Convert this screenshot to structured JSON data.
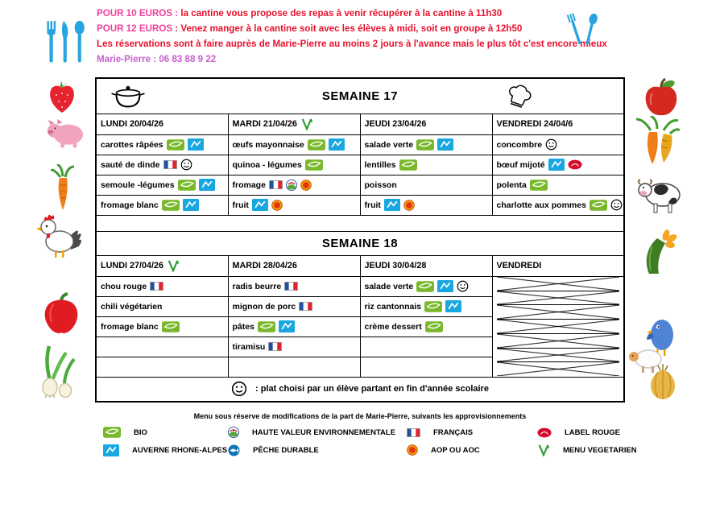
{
  "colors": {
    "pink": "#f0409b",
    "red": "#e8112d",
    "magenta": "#c75fce",
    "bio_green": "#78b82a",
    "ara_blue": "#1aa7e0",
    "label_rouge_red": "#d50a2c",
    "aop_orange": "#f2a007",
    "veg_green": "#2f9e2f",
    "cutlery_blue": "#28a4de"
  },
  "header": {
    "lines": [
      {
        "label": "POUR 10 EUROS : ",
        "text": " la cantine vous propose des repas à venir récupérer à la cantine à 11h30",
        "label_color": "#f0409b",
        "text_color": "#e8112d"
      },
      {
        "label": "POUR 12 EUROS ",
        "text": ": Venez manger à la cantine soit avec les élèves à midi, soit en groupe à 12h50",
        "label_color": "#f0409b",
        "text_color": "#e8112d"
      },
      {
        "label": "",
        "text": "Les réservations sont à faire auprès de Marie-Pierre au moins 2 jours à l'avance mais le plus tôt c'est encore mieux",
        "label_color": "#e8112d",
        "text_color": "#e8112d"
      },
      {
        "label": "",
        "text": "Marie-Pierre  : 06 83 88 9 22",
        "label_color": "#c75fce",
        "text_color": "#c75fce"
      }
    ]
  },
  "weeks": [
    {
      "title": "SEMAINE 17",
      "title_left_icon": "pot",
      "title_right_icon": "chefhat",
      "days": [
        "LUNDI 20/04/26",
        "MARDI 21/04/26",
        "JEUDI 23/04/26",
        "VENDREDI 24/04/6"
      ],
      "day_icons": [
        null,
        "veg",
        null,
        null
      ],
      "rows": [
        [
          {
            "text": "carottes râpées",
            "icons": [
              "bio",
              "ara"
            ]
          },
          {
            "text": "œufs mayonnaise",
            "icons": [
              "bio",
              "ara"
            ]
          },
          {
            "text": "salade verte",
            "icons": [
              "bio",
              "ara"
            ]
          },
          {
            "text": "concombre",
            "icons": [
              "smiley"
            ]
          }
        ],
        [
          {
            "text": "sauté de dinde",
            "icons": [
              "flag",
              "smiley"
            ]
          },
          {
            "text": "quinoa - légumes",
            "icons": [
              "bio"
            ]
          },
          {
            "text": "lentilles",
            "icons": [
              "bio"
            ]
          },
          {
            "text": "bœuf mijoté",
            "icons": [
              "ara",
              "labelrouge"
            ]
          }
        ],
        [
          {
            "text": "semoule -légumes",
            "icons": [
              "bio",
              "ara"
            ]
          },
          {
            "text": "fromage",
            "icons": [
              "flag",
              "hve",
              "aop"
            ]
          },
          {
            "text": "poisson",
            "icons": []
          },
          {
            "text": "polenta",
            "icons": [
              "bio"
            ]
          }
        ],
        [
          {
            "text": "fromage blanc",
            "icons": [
              "bio",
              "ara"
            ]
          },
          {
            "text": "fruit",
            "icons": [
              "ara",
              "aop"
            ]
          },
          {
            "text": "fruit",
            "icons": [
              "ara",
              "aop"
            ]
          },
          {
            "text": "charlotte aux pommes",
            "icons": [
              "bio",
              "smiley"
            ]
          }
        ]
      ]
    },
    {
      "title": "SEMAINE 18",
      "days": [
        "LUNDI 27/04/26",
        "MARDI 28/04/26",
        "JEUDI 30/04/28",
        "VENDREDI"
      ],
      "day_icons": [
        "veg",
        null,
        null,
        null
      ],
      "rows": [
        [
          {
            "text": "chou rouge",
            "icons": [
              "flag"
            ]
          },
          {
            "text": "radis beurre",
            "icons": [
              "flag"
            ]
          },
          {
            "text": "salade verte",
            "icons": [
              "bio",
              "ara",
              "smiley"
            ]
          },
          {
            "crossed": true
          }
        ],
        [
          {
            "text": "chili végétarien",
            "icons": []
          },
          {
            "text": "mignon de porc",
            "icons": [
              "flag"
            ]
          },
          {
            "text": "riz cantonnais",
            "icons": [
              "bio",
              "ara"
            ]
          },
          {
            "crossed": true
          }
        ],
        [
          {
            "text": "fromage blanc",
            "icons": [
              "bio"
            ]
          },
          {
            "text": "pâtes",
            "icons": [
              "bio",
              "ara"
            ]
          },
          {
            "text": "crème dessert",
            "icons": [
              "bio"
            ]
          },
          {
            "crossed": true
          }
        ],
        [
          {
            "text": "",
            "icons": []
          },
          {
            "text": "tiramisu",
            "icons": [
              "flag"
            ]
          },
          {
            "text": "",
            "icons": []
          },
          {
            "crossed": true
          }
        ]
      ],
      "footer": {
        "icon": "smiley",
        "text": ": plat choisi par un élève partant en fin d'année scolaire"
      }
    }
  ],
  "note": "Menu sous réserve de modifications de la part de Marie-Pierre, suivants les approvisionnements",
  "legend": {
    "rows": [
      [
        {
          "icon": "bio",
          "label": "BIO"
        },
        {
          "icon": "hve",
          "label": "HAUTE VALEUR ENVIRONNEMENTALE"
        },
        {
          "icon": "flag",
          "label": "FRANÇAIS"
        },
        {
          "icon": "labelrouge",
          "label": "LABEL ROUGE"
        }
      ],
      [
        {
          "icon": "ara",
          "label": "AUVERNE RHONE-ALPES"
        },
        {
          "icon": "peche",
          "label": "PÊCHE DURABLE"
        },
        {
          "icon": "aop",
          "label": "AOP OU AOC"
        },
        {
          "icon": "veg",
          "label": "MENU VEGETARIEN"
        }
      ]
    ]
  },
  "decorations": [
    "cutlery-left",
    "cutlery-right",
    "strawberry",
    "pig",
    "carrot",
    "rooster",
    "red-pepper",
    "spring-onion",
    "apple",
    "vegetable-bunch",
    "cow",
    "zucchini-flower",
    "blue-bird",
    "sheep",
    "onion"
  ]
}
